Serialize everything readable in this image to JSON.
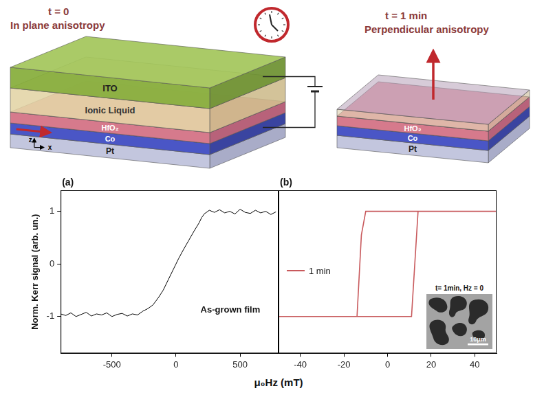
{
  "diagram": {
    "left_panel": {
      "time": "t = 0",
      "state": "In plane anisotropy",
      "layers": [
        "ITO",
        "Ionic Liquid",
        "HfO₂",
        "Co",
        "Pt"
      ],
      "axes": [
        "z",
        "x"
      ]
    },
    "right_panel": {
      "time": "t = 1 min",
      "state": "Perpendicular anisotropy",
      "layers": [
        "HfO₂",
        "Co",
        "Pt"
      ]
    }
  },
  "x_label": "μ₀Hz (mT)",
  "chart_data": [
    {
      "panel": "(a)",
      "type": "line",
      "y_label": "Norm. Kerr signal (arb. un.)",
      "annotation": "As-grown film",
      "color": "#000000",
      "x": [
        -900,
        -860,
        -820,
        -780,
        -740,
        -700,
        -660,
        -620,
        -580,
        -540,
        -500,
        -460,
        -420,
        -380,
        -340,
        -300,
        -260,
        -220,
        -180,
        -140,
        -100,
        -60,
        -20,
        0,
        20,
        60,
        100,
        140,
        180,
        200,
        220,
        260,
        300,
        340,
        380,
        420,
        460,
        500,
        540,
        580,
        620,
        660,
        700,
        740,
        780
      ],
      "values": [
        -0.95,
        -0.98,
        -0.93,
        -1.0,
        -0.96,
        -0.92,
        -0.99,
        -0.95,
        -0.97,
        -0.93,
        -1.0,
        -0.96,
        -0.94,
        -0.99,
        -0.95,
        -0.97,
        -0.9,
        -0.85,
        -0.78,
        -0.65,
        -0.5,
        -0.3,
        -0.1,
        0.0,
        0.1,
        0.28,
        0.45,
        0.62,
        0.78,
        0.88,
        0.95,
        1.02,
        0.98,
        1.03,
        0.97,
        1.0,
        0.95,
        1.04,
        0.98,
        0.96,
        1.02,
        0.97,
        1.0,
        0.94,
        0.99
      ],
      "xlim": [
        -900,
        800
      ],
      "ylim": [
        -1.7,
        1.4
      ],
      "xticks": [
        -500,
        0,
        500
      ],
      "yticks": [
        -1,
        0,
        1
      ],
      "grid": false
    },
    {
      "panel": "(b)",
      "type": "line",
      "series": [
        {
          "name": "1 min",
          "color": "#c8595c",
          "x": [
            -50,
            11,
            14,
            50,
            -10,
            -12,
            -14,
            -50
          ],
          "values": [
            -1,
            -1,
            1,
            1,
            1,
            0.55,
            -1,
            -1
          ]
        }
      ],
      "xlim": [
        -50,
        50
      ],
      "ylim": [
        -1.7,
        1.4
      ],
      "xticks": [
        -40,
        -20,
        0,
        20,
        40
      ],
      "yticks": [
        -1,
        0,
        1
      ],
      "tick_labels": "x",
      "grid": false,
      "legend": "left",
      "inset": {
        "caption": "t= 1min, Hz = 0",
        "scale_bar": "10μm"
      }
    }
  ]
}
